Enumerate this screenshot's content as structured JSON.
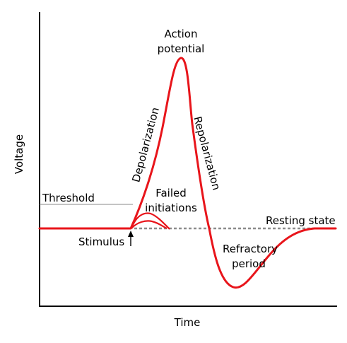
{
  "diagram": {
    "axes": {
      "y_label": "Voltage",
      "x_label": "Time"
    },
    "labels": {
      "action_potential_line1": "Action",
      "action_potential_line2": "potential",
      "depolarization": "Depolarization",
      "repolarization": "Repolarization",
      "threshold": "Threshold",
      "failed_line1": "Failed",
      "failed_line2": "initiations",
      "resting_state": "Resting state",
      "stimulus": "Stimulus",
      "refractory_line1": "Refractory",
      "refractory_line2": "period"
    },
    "colors": {
      "curve": "#e8151b",
      "axis": "#000000",
      "threshold_line": "#a0a0a0",
      "resting_dashed": "#8c8c8c"
    }
  }
}
